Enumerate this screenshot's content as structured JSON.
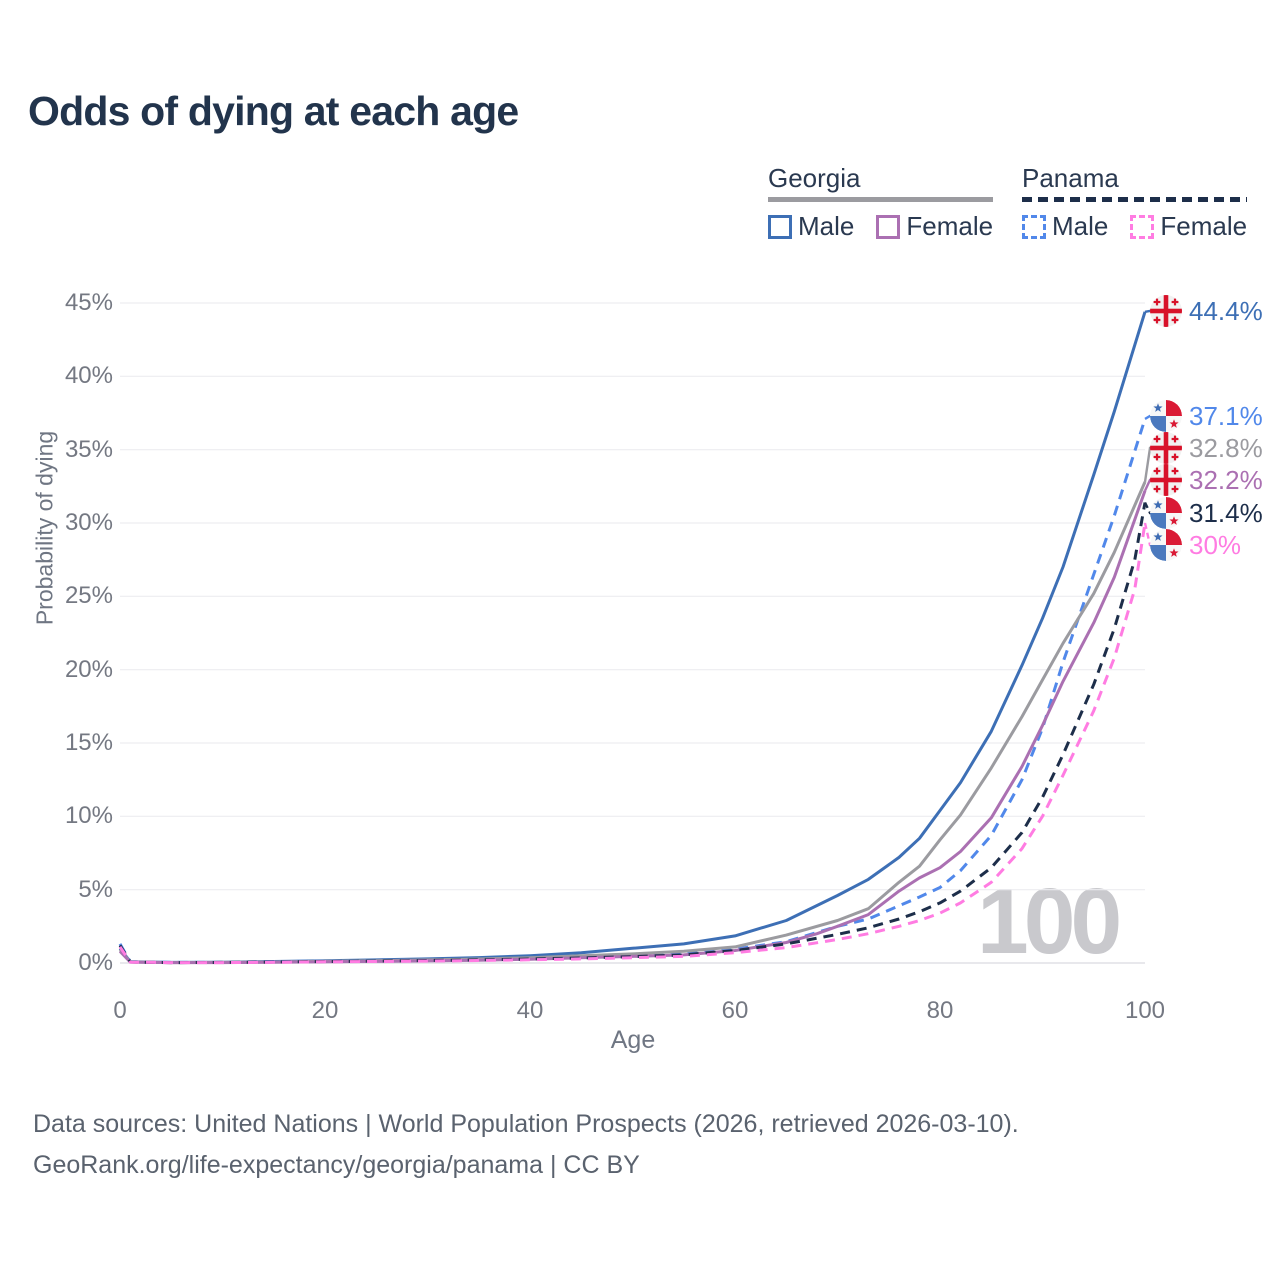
{
  "title": "Odds of dying at each age",
  "watermark": "100",
  "legend": {
    "groups": [
      {
        "label": "Georgia",
        "line_style": "solid",
        "color": "#9b9ba0",
        "items": [
          {
            "label": "Male",
            "color": "#3d6fb5",
            "dashed": false
          },
          {
            "label": "Female",
            "color": "#ab70b2",
            "dashed": false
          }
        ]
      },
      {
        "label": "Panama",
        "line_style": "dashed",
        "color": "#1d2e4a",
        "items": [
          {
            "label": "Male",
            "color": "#5188ea",
            "dashed": true
          },
          {
            "label": "Female",
            "color": "#ff7ce2",
            "dashed": true
          }
        ]
      }
    ]
  },
  "footer": {
    "line1": "Data sources: United Nations | World Population Prospects (2026, retrieved 2026-03-10).",
    "line2": "GeoRank.org/life-expectancy/georgia/panama | CC BY"
  },
  "chart_data": {
    "type": "line",
    "title": "Odds of dying at each age",
    "xlabel": "Age",
    "ylabel": "Probability of dying",
    "xlim": [
      0,
      100
    ],
    "ylim": [
      0,
      45
    ],
    "xticks": [
      0,
      20,
      40,
      60,
      80,
      100
    ],
    "ytick_labels": [
      "0%",
      "5%",
      "10%",
      "15%",
      "20%",
      "25%",
      "30%",
      "35%",
      "40%",
      "45%"
    ],
    "grid": true,
    "legend_position": "top-right",
    "series": [
      {
        "name": "Georgia Male",
        "country": "georgia",
        "sex": "male",
        "style": "solid",
        "color": "#3d6fb5",
        "end_label": "44.4%",
        "end_value": 44.4,
        "points": [
          [
            0,
            1.0
          ],
          [
            1,
            0.08
          ],
          [
            5,
            0.04
          ],
          [
            10,
            0.05
          ],
          [
            15,
            0.1
          ],
          [
            20,
            0.16
          ],
          [
            25,
            0.21
          ],
          [
            30,
            0.28
          ],
          [
            35,
            0.37
          ],
          [
            40,
            0.5
          ],
          [
            45,
            0.7
          ],
          [
            50,
            1.0
          ],
          [
            55,
            1.3
          ],
          [
            60,
            1.85
          ],
          [
            65,
            2.9
          ],
          [
            70,
            4.6
          ],
          [
            73,
            5.7
          ],
          [
            76,
            7.2
          ],
          [
            78,
            8.5
          ],
          [
            80,
            10.4
          ],
          [
            82,
            12.3
          ],
          [
            85,
            15.8
          ],
          [
            88,
            20.3
          ],
          [
            90,
            23.5
          ],
          [
            92,
            27.0
          ],
          [
            95,
            33.3
          ],
          [
            97,
            37.6
          ],
          [
            100,
            44.4
          ]
        ]
      },
      {
        "name": "Panama Male",
        "country": "panama",
        "sex": "male",
        "style": "dashed",
        "color": "#5188ea",
        "end_label": "37.1%",
        "end_value": 37.1,
        "points": [
          [
            0,
            1.3
          ],
          [
            1,
            0.08
          ],
          [
            5,
            0.04
          ],
          [
            10,
            0.05
          ],
          [
            15,
            0.09
          ],
          [
            20,
            0.13
          ],
          [
            25,
            0.17
          ],
          [
            30,
            0.21
          ],
          [
            35,
            0.26
          ],
          [
            40,
            0.32
          ],
          [
            45,
            0.4
          ],
          [
            50,
            0.5
          ],
          [
            55,
            0.62
          ],
          [
            60,
            0.95
          ],
          [
            65,
            1.45
          ],
          [
            70,
            2.5
          ],
          [
            73,
            3.0
          ],
          [
            76,
            3.9
          ],
          [
            78,
            4.5
          ],
          [
            80,
            5.15
          ],
          [
            82,
            6.3
          ],
          [
            85,
            8.7
          ],
          [
            88,
            12.5
          ],
          [
            90,
            16.0
          ],
          [
            92,
            20.5
          ],
          [
            95,
            26.5
          ],
          [
            97,
            30.5
          ],
          [
            100,
            37.1
          ]
        ]
      },
      {
        "name": "Georgia",
        "country": "georgia",
        "sex": "all",
        "style": "solid",
        "color": "#9b9ba0",
        "end_label": "32.8%",
        "end_value": 32.8,
        "points": [
          [
            0,
            0.9
          ],
          [
            1,
            0.07
          ],
          [
            5,
            0.03
          ],
          [
            10,
            0.04
          ],
          [
            15,
            0.07
          ],
          [
            20,
            0.12
          ],
          [
            25,
            0.16
          ],
          [
            30,
            0.21
          ],
          [
            35,
            0.27
          ],
          [
            40,
            0.36
          ],
          [
            45,
            0.5
          ],
          [
            50,
            0.62
          ],
          [
            55,
            0.8
          ],
          [
            60,
            1.1
          ],
          [
            65,
            1.9
          ],
          [
            70,
            2.9
          ],
          [
            73,
            3.7
          ],
          [
            76,
            5.5
          ],
          [
            78,
            6.6
          ],
          [
            80,
            8.4
          ],
          [
            82,
            10.1
          ],
          [
            85,
            13.3
          ],
          [
            88,
            16.8
          ],
          [
            90,
            19.3
          ],
          [
            92,
            21.8
          ],
          [
            95,
            25.2
          ],
          [
            97,
            28.0
          ],
          [
            100,
            32.8
          ]
        ]
      },
      {
        "name": "Georgia Female",
        "country": "georgia",
        "sex": "female",
        "style": "solid",
        "color": "#ab70b2",
        "end_label": "32.2%",
        "end_value": 32.2,
        "points": [
          [
            0,
            0.8
          ],
          [
            1,
            0.06
          ],
          [
            5,
            0.03
          ],
          [
            10,
            0.03
          ],
          [
            15,
            0.05
          ],
          [
            20,
            0.08
          ],
          [
            25,
            0.11
          ],
          [
            30,
            0.14
          ],
          [
            35,
            0.19
          ],
          [
            40,
            0.26
          ],
          [
            45,
            0.36
          ],
          [
            50,
            0.45
          ],
          [
            55,
            0.55
          ],
          [
            60,
            0.85
          ],
          [
            65,
            1.4
          ],
          [
            68,
            2.0
          ],
          [
            70,
            2.5
          ],
          [
            73,
            3.3
          ],
          [
            76,
            4.9
          ],
          [
            78,
            5.8
          ],
          [
            80,
            6.5
          ],
          [
            82,
            7.6
          ],
          [
            85,
            9.9
          ],
          [
            88,
            13.4
          ],
          [
            90,
            16.2
          ],
          [
            92,
            19.2
          ],
          [
            95,
            23.2
          ],
          [
            97,
            26.3
          ],
          [
            100,
            32.2
          ]
        ]
      },
      {
        "name": "Panama",
        "country": "panama",
        "sex": "all",
        "style": "dashed",
        "color": "#1d2e4a",
        "end_label": "31.4%",
        "end_value": 31.4,
        "points": [
          [
            0,
            1.2
          ],
          [
            1,
            0.07
          ],
          [
            5,
            0.03
          ],
          [
            10,
            0.04
          ],
          [
            15,
            0.07
          ],
          [
            20,
            0.1
          ],
          [
            25,
            0.13
          ],
          [
            30,
            0.17
          ],
          [
            35,
            0.21
          ],
          [
            40,
            0.27
          ],
          [
            45,
            0.34
          ],
          [
            50,
            0.43
          ],
          [
            55,
            0.55
          ],
          [
            60,
            0.85
          ],
          [
            65,
            1.3
          ],
          [
            70,
            1.95
          ],
          [
            73,
            2.4
          ],
          [
            76,
            3.0
          ],
          [
            78,
            3.5
          ],
          [
            80,
            4.1
          ],
          [
            82,
            4.9
          ],
          [
            85,
            6.5
          ],
          [
            88,
            8.9
          ],
          [
            90,
            11.3
          ],
          [
            92,
            14.2
          ],
          [
            95,
            19.0
          ],
          [
            97,
            22.8
          ],
          [
            99,
            27.5
          ],
          [
            100,
            31.4
          ]
        ]
      },
      {
        "name": "Panama Female",
        "country": "panama",
        "sex": "female",
        "style": "dashed",
        "color": "#ff7ce2",
        "end_label": "30%",
        "end_value": 30.0,
        "points": [
          [
            0,
            1.1
          ],
          [
            1,
            0.06
          ],
          [
            5,
            0.03
          ],
          [
            10,
            0.03
          ],
          [
            15,
            0.05
          ],
          [
            20,
            0.08
          ],
          [
            25,
            0.1
          ],
          [
            30,
            0.13
          ],
          [
            35,
            0.17
          ],
          [
            40,
            0.22
          ],
          [
            45,
            0.28
          ],
          [
            50,
            0.36
          ],
          [
            55,
            0.45
          ],
          [
            60,
            0.7
          ],
          [
            65,
            1.05
          ],
          [
            70,
            1.6
          ],
          [
            73,
            2.0
          ],
          [
            76,
            2.5
          ],
          [
            78,
            2.9
          ],
          [
            80,
            3.4
          ],
          [
            82,
            4.1
          ],
          [
            85,
            5.5
          ],
          [
            88,
            7.8
          ],
          [
            90,
            10.0
          ],
          [
            92,
            12.8
          ],
          [
            95,
            17.2
          ],
          [
            97,
            20.8
          ],
          [
            99,
            25.5
          ],
          [
            100,
            30.0
          ]
        ]
      }
    ]
  }
}
